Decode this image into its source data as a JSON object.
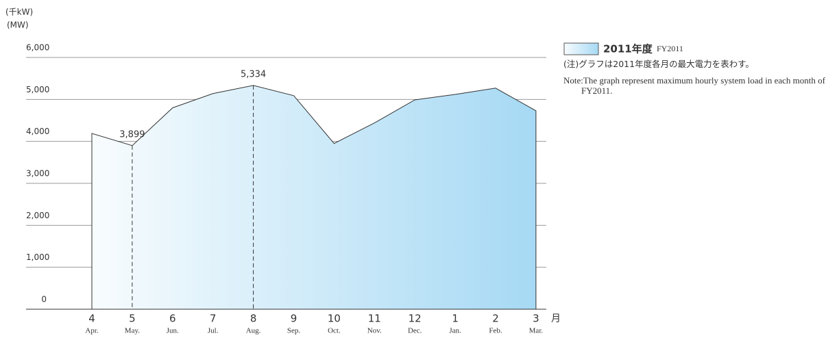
{
  "chart_data": {
    "type": "area",
    "unit_label": "(千kW)",
    "unit_label_en": "(MW)",
    "x_unit": "月",
    "categories": [
      "4",
      "5",
      "6",
      "7",
      "8",
      "9",
      "10",
      "11",
      "12",
      "1",
      "2",
      "3"
    ],
    "category_sublabels": [
      "Apr.",
      "May.",
      "Jun.",
      "Jul.",
      "Aug.",
      "Sep.",
      "Oct.",
      "Nov.",
      "Dec.",
      "Jan.",
      "Feb.",
      "Mar."
    ],
    "series": [
      {
        "name": "2011年度",
        "name_en": "FY2011",
        "color": [
          "#f8fcfe",
          "#a6d9f4"
        ],
        "line_color": "#333333",
        "values": [
          4190,
          3899,
          4800,
          5140,
          5334,
          5090,
          3950,
          4440,
          4990,
          5120,
          5270,
          4730
        ],
        "value_labels": [
          null,
          "3,899",
          null,
          null,
          "5,334",
          null,
          null,
          null,
          null,
          null,
          null,
          null
        ]
      }
    ],
    "ylim": [
      0,
      6000
    ],
    "yticks": [
      0,
      {
        "value": 1000,
        "label": "1,000"
      },
      {
        "value": 2000,
        "label": "2,000"
      },
      {
        "value": 3000,
        "label": "3,000"
      },
      {
        "value": 4000,
        "label": "4,000"
      },
      {
        "value": 5000,
        "label": "5,000"
      },
      {
        "value": 6000,
        "label": "6,000"
      }
    ],
    "grid": true,
    "legend_position": "right",
    "notes": [
      "(注)グラフは2011年度各月の最大電力を表わす。",
      "Note:The graph represent maximum hourly system load in each month of FY2011."
    ]
  }
}
